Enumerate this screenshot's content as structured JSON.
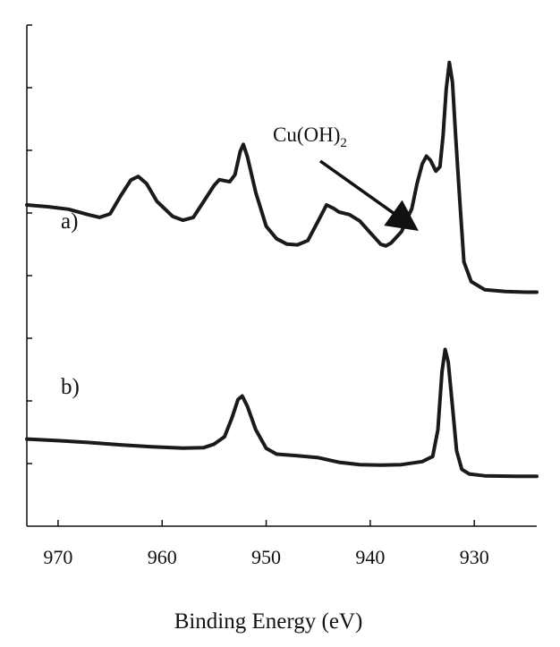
{
  "chart_data": {
    "type": "line",
    "xlabel": "Binding Energy (eV)",
    "ylabel": "",
    "xlim": [
      973,
      924
    ],
    "ylim": [
      0,
      1
    ],
    "x_reversed": true,
    "grid": false,
    "x_ticks": [
      970,
      960,
      950,
      940,
      930
    ],
    "y_tick_count": 8,
    "line_color": "#1a1a1a",
    "annotation": {
      "text": "Cu(OH)",
      "subscript": "2",
      "arrow_to_x": 935.5
    },
    "series": [
      {
        "label": "a)",
        "points": [
          [
            973,
            0.505
          ],
          [
            971,
            0.5
          ],
          [
            969,
            0.493
          ],
          [
            967,
            0.477
          ],
          [
            966,
            0.47
          ],
          [
            965,
            0.48
          ],
          [
            964,
            0.53
          ],
          [
            963,
            0.575
          ],
          [
            962.3,
            0.585
          ],
          [
            961.5,
            0.565
          ],
          [
            960.5,
            0.515
          ],
          [
            959,
            0.473
          ],
          [
            958,
            0.462
          ],
          [
            957,
            0.47
          ],
          [
            956,
            0.515
          ],
          [
            955,
            0.56
          ],
          [
            954.5,
            0.576
          ],
          [
            953.5,
            0.57
          ],
          [
            953,
            0.59
          ],
          [
            952.5,
            0.655
          ],
          [
            952.2,
            0.675
          ],
          [
            951.8,
            0.64
          ],
          [
            951,
            0.54
          ],
          [
            950,
            0.445
          ],
          [
            949,
            0.41
          ],
          [
            948,
            0.395
          ],
          [
            947,
            0.393
          ],
          [
            946,
            0.405
          ],
          [
            945,
            0.46
          ],
          [
            944.2,
            0.505
          ],
          [
            943.5,
            0.495
          ],
          [
            943,
            0.485
          ],
          [
            942,
            0.478
          ],
          [
            941,
            0.46
          ],
          [
            940,
            0.427
          ],
          [
            939,
            0.395
          ],
          [
            938.5,
            0.39
          ],
          [
            938,
            0.398
          ],
          [
            937,
            0.43
          ],
          [
            936,
            0.495
          ],
          [
            935.5,
            0.565
          ],
          [
            935,
            0.62
          ],
          [
            934.6,
            0.642
          ],
          [
            934.2,
            0.63
          ],
          [
            933.7,
            0.6
          ],
          [
            933.3,
            0.612
          ],
          [
            933,
            0.7
          ],
          [
            932.7,
            0.83
          ],
          [
            932.4,
            0.905
          ],
          [
            932.1,
            0.85
          ],
          [
            931.8,
            0.7
          ],
          [
            931.4,
            0.52
          ],
          [
            931,
            0.345
          ],
          [
            930.3,
            0.29
          ],
          [
            929,
            0.267
          ],
          [
            927,
            0.262
          ],
          [
            925,
            0.26
          ],
          [
            924,
            0.26
          ]
        ]
      },
      {
        "label": "b)",
        "points": [
          [
            973,
            0.19
          ],
          [
            970,
            0.183
          ],
          [
            967,
            0.175
          ],
          [
            964,
            0.165
          ],
          [
            961,
            0.157
          ],
          [
            958,
            0.151
          ],
          [
            956,
            0.153
          ],
          [
            955,
            0.168
          ],
          [
            954,
            0.2
          ],
          [
            953.3,
            0.28
          ],
          [
            952.7,
            0.36
          ],
          [
            952.3,
            0.375
          ],
          [
            951.8,
            0.33
          ],
          [
            951,
            0.23
          ],
          [
            950,
            0.15
          ],
          [
            949,
            0.125
          ],
          [
            947,
            0.118
          ],
          [
            945,
            0.11
          ],
          [
            943,
            0.09
          ],
          [
            941,
            0.08
          ],
          [
            939,
            0.078
          ],
          [
            937,
            0.08
          ],
          [
            935,
            0.093
          ],
          [
            934,
            0.115
          ],
          [
            933.5,
            0.23
          ],
          [
            933.1,
            0.48
          ],
          [
            932.8,
            0.575
          ],
          [
            932.5,
            0.52
          ],
          [
            932.1,
            0.33
          ],
          [
            931.7,
            0.14
          ],
          [
            931.2,
            0.06
          ],
          [
            930.5,
            0.04
          ],
          [
            929,
            0.032
          ],
          [
            926,
            0.03
          ],
          [
            924,
            0.03
          ]
        ]
      }
    ]
  }
}
